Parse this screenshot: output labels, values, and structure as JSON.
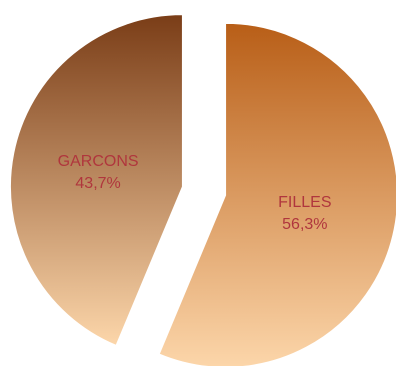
{
  "chart_data": {
    "type": "pie",
    "title": "",
    "slices": [
      {
        "label": "FILLES",
        "value": 56.3,
        "value_text": "56,3%",
        "color": "#c8772e"
      },
      {
        "label": "GARCONS",
        "value": 43.7,
        "value_text": "43,7%",
        "color": "#8a4a22"
      }
    ],
    "exploded": true,
    "start": "top",
    "direction": "clockwise",
    "gradient": {
      "light": "#fcd6aa",
      "dark_filles": "#b85e17",
      "dark_garcons": "#7a3d17"
    }
  }
}
